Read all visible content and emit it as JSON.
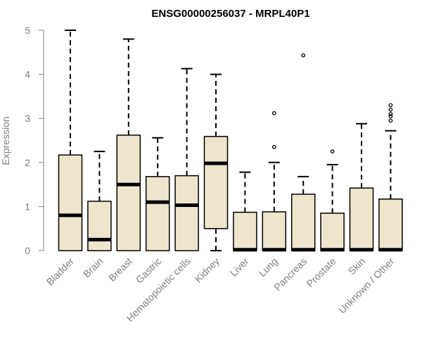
{
  "chart_data": {
    "type": "box",
    "title": "ENSG00000256037 - MRPL40P1",
    "xlabel": "",
    "ylabel": "Expression",
    "ylim": [
      0,
      5
    ],
    "yticks": [
      "0",
      "1",
      "2",
      "3",
      "4",
      "5"
    ],
    "grid": false,
    "colors": {
      "box_fill": "#EDE6CC",
      "stroke": "#000000",
      "axis_text": "#808080"
    },
    "categories": [
      "Bladder",
      "Brain",
      "Breast",
      "Gastric",
      "Hematopoietic cells",
      "Kidney",
      "Liver",
      "Lung",
      "Pancreas",
      "Prostate",
      "Skin",
      "Unknown / Other"
    ],
    "boxes": [
      {
        "category": "Bladder",
        "min": 0,
        "q1": 0,
        "median": 0.8,
        "q3": 2.17,
        "max": 5.0,
        "outliers": []
      },
      {
        "category": "Brain",
        "min": 0,
        "q1": 0,
        "median": 0.25,
        "q3": 1.12,
        "max": 2.25,
        "outliers": []
      },
      {
        "category": "Breast",
        "min": 0,
        "q1": 0,
        "median": 1.5,
        "q3": 2.62,
        "max": 4.8,
        "outliers": []
      },
      {
        "category": "Gastric",
        "min": 0,
        "q1": 0,
        "median": 1.1,
        "q3": 1.68,
        "max": 2.56,
        "outliers": []
      },
      {
        "category": "Hematopoietic cells",
        "min": 0,
        "q1": 0,
        "median": 1.03,
        "q3": 1.7,
        "max": 4.13,
        "outliers": []
      },
      {
        "category": "Kidney",
        "min": 0,
        "q1": 0.5,
        "median": 1.98,
        "q3": 2.59,
        "max": 4.0,
        "outliers": []
      },
      {
        "category": "Liver",
        "min": 0,
        "q1": 0,
        "median": 0.02,
        "q3": 0.87,
        "max": 1.78,
        "outliers": []
      },
      {
        "category": "Lung",
        "min": 0,
        "q1": 0,
        "median": 0.02,
        "q3": 0.88,
        "max": 2.0,
        "outliers": [
          2.35,
          3.12
        ]
      },
      {
        "category": "Pancreas",
        "min": 0,
        "q1": 0,
        "median": 0.02,
        "q3": 1.28,
        "max": 1.68,
        "outliers": [
          4.43
        ]
      },
      {
        "category": "Prostate",
        "min": 0,
        "q1": 0,
        "median": 0.02,
        "q3": 0.85,
        "max": 1.95,
        "outliers": [
          2.25
        ]
      },
      {
        "category": "Skin",
        "min": 0,
        "q1": 0,
        "median": 0.02,
        "q3": 1.42,
        "max": 2.88,
        "outliers": []
      },
      {
        "category": "Unknown / Other",
        "min": 0,
        "q1": 0,
        "median": 0.02,
        "q3": 1.17,
        "max": 2.72,
        "outliers": [
          2.95,
          3.05,
          3.1,
          3.2,
          3.3
        ]
      }
    ]
  }
}
